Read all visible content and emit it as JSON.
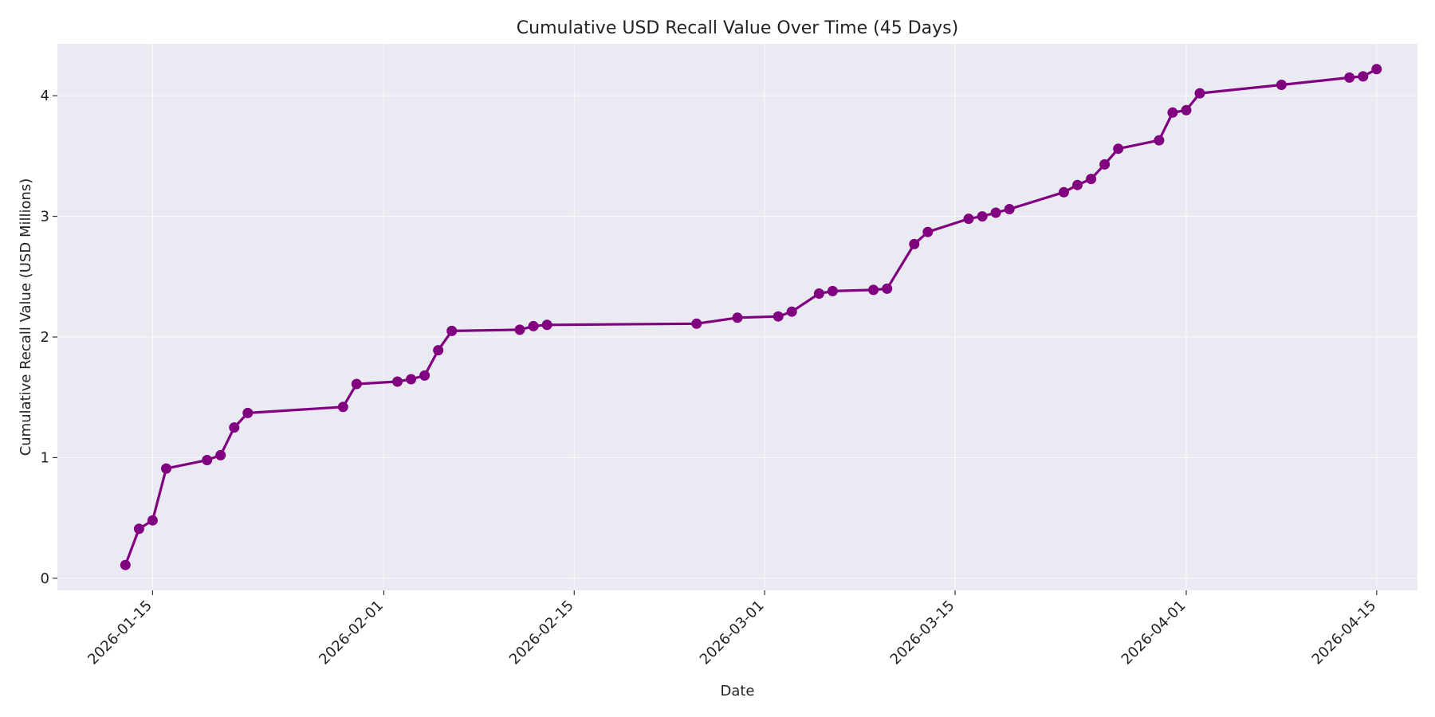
{
  "chart_data": {
    "type": "line",
    "title": "Cumulative USD Recall Value Over Time (45 Days)",
    "xlabel": "Date",
    "ylabel": "Cumulative Recall Value (USD Millions)",
    "xlim": [
      "2026-01-08",
      "2026-04-18"
    ],
    "ylim": [
      -0.1,
      4.43
    ],
    "x_ticks": [
      "2026-01-15",
      "2026-02-01",
      "2026-02-15",
      "2026-03-01",
      "2026-03-15",
      "2026-04-01",
      "2026-04-15"
    ],
    "y_ticks": [
      0,
      1,
      2,
      3,
      4
    ],
    "grid": true,
    "colors": {
      "line": "#800080",
      "plot_background": "#eaeaf2",
      "grid": "#ffffff"
    },
    "series": [
      {
        "x": [
          "2026-01-13",
          "2026-01-14",
          "2026-01-15",
          "2026-01-16",
          "2026-01-19",
          "2026-01-20",
          "2026-01-21",
          "2026-01-22",
          "2026-01-29",
          "2026-01-30",
          "2026-02-02",
          "2026-02-03",
          "2026-02-04",
          "2026-02-05",
          "2026-02-06",
          "2026-02-11",
          "2026-02-12",
          "2026-02-13",
          "2026-02-24",
          "2026-02-27",
          "2026-03-02",
          "2026-03-03",
          "2026-03-05",
          "2026-03-06",
          "2026-03-09",
          "2026-03-10",
          "2026-03-12",
          "2026-03-13",
          "2026-03-16",
          "2026-03-17",
          "2026-03-18",
          "2026-03-19",
          "2026-03-23",
          "2026-03-24",
          "2026-03-25",
          "2026-03-26",
          "2026-03-27",
          "2026-03-30",
          "2026-03-31",
          "2026-04-01",
          "2026-04-02",
          "2026-04-08",
          "2026-04-13",
          "2026-04-14",
          "2026-04-15"
        ],
        "values": [
          0.11,
          0.41,
          0.48,
          0.91,
          0.98,
          1.02,
          1.25,
          1.37,
          1.42,
          1.61,
          1.63,
          1.65,
          1.68,
          1.89,
          2.05,
          2.06,
          2.09,
          2.1,
          2.11,
          2.16,
          2.17,
          2.21,
          2.36,
          2.38,
          2.39,
          2.4,
          2.77,
          2.87,
          2.98,
          3.0,
          3.03,
          3.06,
          3.2,
          3.26,
          3.31,
          3.43,
          3.56,
          3.63,
          3.86,
          3.88,
          4.02,
          4.09,
          4.15,
          4.16,
          4.22
        ]
      }
    ]
  }
}
